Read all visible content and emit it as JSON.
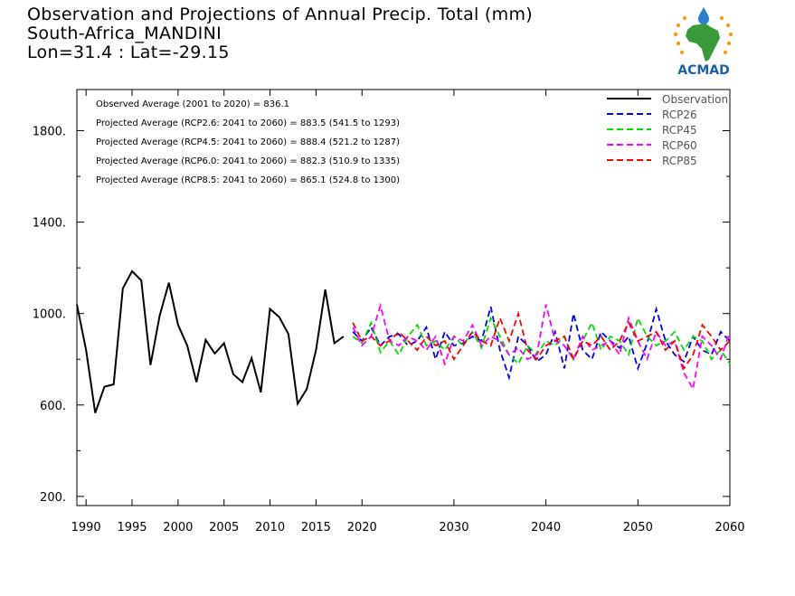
{
  "header": {
    "title": "Observation and Projections of Annual Precip. Total (mm)",
    "location": "South-Africa_MANDINI",
    "coords": "Lon=31.4 : Lat=-29.15"
  },
  "logo": {
    "text": "ACMAD",
    "colors": {
      "africa": "#3a9a3a",
      "drop": "#2a7fd0",
      "rays": "#f0a020",
      "text": "#1f5fa8"
    }
  },
  "chart_data": {
    "type": "line",
    "title": "Observation and Projections of Annual Precip. Total (mm)",
    "xlabel": "",
    "ylabel": "",
    "xlim": [
      1989,
      2060
    ],
    "ylim": [
      160,
      1980
    ],
    "x_ticks": [
      1990,
      1995,
      2000,
      2005,
      2010,
      2015,
      2020,
      2030,
      2040,
      2050,
      2060
    ],
    "y_ticks": [
      200,
      600,
      1000,
      1400,
      1800
    ],
    "y_tick_labels": [
      "200.",
      "600.",
      "1000.",
      "1400.",
      "1800."
    ],
    "grid": false,
    "legend_position": "top-right",
    "annotations": [
      "Observed Average (2001 to 2020) = 836.1",
      "Projected Average (RCP2.6: 2041 to 2060) = 883.5 (541.5 to 1293)",
      "Projected Average (RCP4.5: 2041 to 2060) = 888.4 (521.2 to 1287)",
      "Projected Average (RCP6.0: 2041 to 2060) = 882.3 (510.9 to 1335)",
      "Projected Average (RCP8.5: 2041 to 2060) = 865.1 (524.8 to 1300)"
    ],
    "series": [
      {
        "name": "Observation",
        "color": "#000000",
        "dash": "solid",
        "x_start": 1989,
        "values": [
          1040,
          840,
          565,
          680,
          690,
          1110,
          1185,
          1145,
          775,
          990,
          1135,
          950,
          860,
          700,
          885,
          825,
          870,
          735,
          700,
          805,
          655,
          1020,
          985,
          910,
          605,
          670,
          840,
          1105,
          870,
          900
        ]
      },
      {
        "name": "RCP26",
        "color": "#0000ff",
        "dash": "dashed",
        "x_start": 2019,
        "values": [
          920,
          880,
          940,
          860,
          900,
          910,
          860,
          880,
          940,
          800,
          920,
          860,
          870,
          900,
          880,
          1030,
          840,
          720,
          900,
          860,
          790,
          820,
          920,
          760,
          1000,
          840,
          800,
          920,
          880,
          850,
          900,
          760,
          870,
          1020,
          880,
          820,
          790,
          900,
          840,
          820,
          920,
          880
        ]
      },
      {
        "name": "RCP45",
        "color": "#00dd00",
        "dash": "dashed",
        "x_start": 2019,
        "values": [
          900,
          870,
          960,
          830,
          880,
          820,
          900,
          950,
          860,
          880,
          840,
          900,
          860,
          920,
          850,
          980,
          900,
          820,
          780,
          860,
          820,
          880,
          860,
          900,
          800,
          880,
          960,
          840,
          900,
          880,
          820,
          980,
          900,
          860,
          880,
          920,
          840,
          900,
          880,
          800,
          840,
          780
        ]
      },
      {
        "name": "RCP60",
        "color": "#ff00ff",
        "dash": "dashed",
        "x_start": 2019,
        "values": [
          940,
          860,
          900,
          1035,
          880,
          860,
          900,
          880,
          840,
          900,
          780,
          900,
          880,
          950,
          860,
          900,
          880,
          820,
          850,
          800,
          820,
          1040,
          880,
          860,
          800,
          900,
          840,
          860,
          880,
          820,
          980,
          880,
          800,
          920,
          860,
          880,
          740,
          670,
          900,
          860,
          800,
          920
        ]
      },
      {
        "name": "RCP85",
        "color": "#ff0000",
        "dash": "dashed",
        "x_start": 2019,
        "values": [
          960,
          880,
          900,
          860,
          880,
          920,
          880,
          840,
          900,
          860,
          880,
          800,
          860,
          920,
          880,
          860,
          980,
          880,
          1000,
          840,
          800,
          860,
          880,
          900,
          800,
          880,
          860,
          900,
          840,
          880,
          960,
          880,
          900,
          920,
          840,
          880,
          760,
          820,
          950,
          900,
          840,
          880
        ]
      }
    ]
  }
}
